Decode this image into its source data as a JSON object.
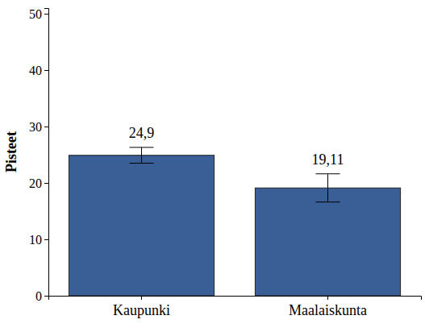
{
  "chart_data": {
    "type": "bar",
    "y_label": "Pisteet",
    "categories": [
      "Kaupunki",
      "Maalaiskunta"
    ],
    "values": [
      24.9,
      19.11
    ],
    "value_labels": [
      "24,9",
      "19,11"
    ],
    "errors": [
      1.4,
      2.5
    ],
    "color": "#3a5f96",
    "ylim": [
      0,
      51
    ],
    "yticks": [
      0,
      10,
      20,
      30,
      40,
      50
    ],
    "data_labels": true
  }
}
